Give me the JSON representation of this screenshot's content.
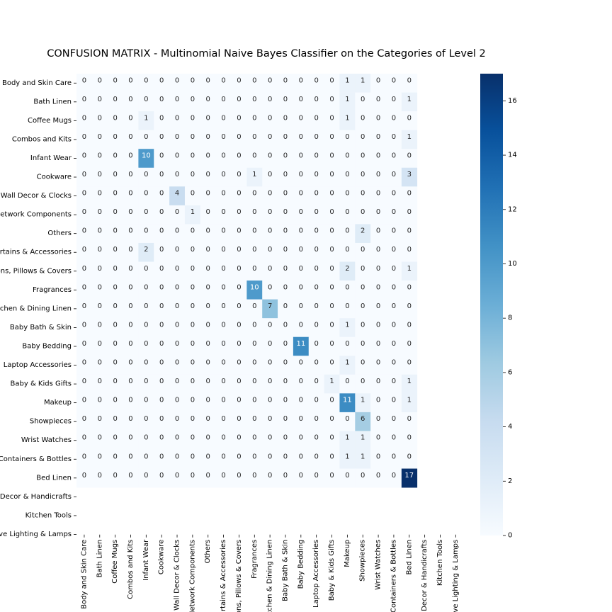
{
  "chart_data": {
    "type": "heatmap",
    "title": "CONFUSION MATRIX - Multinomial Naive Bayes Classifier on the Categories of Level 2",
    "row_labels": [
      "Body and Skin Care",
      "Bath Linen",
      "Coffee Mugs",
      "Combos and Kits",
      "Infant Wear",
      "Cookware",
      "Wall Decor & Clocks",
      "Network Components",
      "Others",
      "Curtains & Accessories",
      "Cushions, Pillows & Covers",
      "Fragrances",
      "Kitchen & Dining Linen",
      "Baby Bath & Skin",
      "Baby Bedding",
      "Laptop Accessories",
      "Baby & Kids Gifts",
      "Makeup",
      "Showpieces",
      "Wrist Watches",
      "Containers & Bottles",
      "Bed Linen",
      "Home Decor & Handicrafts",
      "Kitchen Tools",
      "Decorative Lighting & Lamps"
    ],
    "col_labels": [
      "Body and Skin Care",
      "Bath Linen",
      "Coffee Mugs",
      "Combos and Kits",
      "Infant Wear",
      "Cookware",
      "Wall Decor & Clocks",
      "Network Components",
      "Others",
      "Curtains & Accessories",
      "Cushions, Pillows & Covers",
      "Fragrances",
      "Kitchen & Dining Linen",
      "Baby Bath & Skin",
      "Baby Bedding",
      "Laptop Accessories",
      "Baby & Kids Gifts",
      "Makeup",
      "Showpieces",
      "Wrist Watches",
      "Containers & Bottles",
      "Bed Linen",
      "Home Decor & Handicrafts",
      "Kitchen Tools",
      "Decorative Lighting & Lamps"
    ],
    "n_filled_cols": 22,
    "matrix": [
      [
        0,
        0,
        0,
        0,
        0,
        0,
        0,
        0,
        0,
        0,
        0,
        0,
        0,
        0,
        0,
        0,
        0,
        1,
        1,
        0,
        0,
        0
      ],
      [
        0,
        0,
        0,
        0,
        0,
        0,
        0,
        0,
        0,
        0,
        0,
        0,
        0,
        0,
        0,
        0,
        0,
        1,
        0,
        0,
        0,
        1
      ],
      [
        0,
        0,
        0,
        0,
        1,
        0,
        0,
        0,
        0,
        0,
        0,
        0,
        0,
        0,
        0,
        0,
        0,
        1,
        0,
        0,
        0,
        0
      ],
      [
        0,
        0,
        0,
        0,
        0,
        0,
        0,
        0,
        0,
        0,
        0,
        0,
        0,
        0,
        0,
        0,
        0,
        0,
        0,
        0,
        0,
        1
      ],
      [
        0,
        0,
        0,
        0,
        10,
        0,
        0,
        0,
        0,
        0,
        0,
        0,
        0,
        0,
        0,
        0,
        0,
        0,
        0,
        0,
        0,
        0
      ],
      [
        0,
        0,
        0,
        0,
        0,
        0,
        0,
        0,
        0,
        0,
        0,
        1,
        0,
        0,
        0,
        0,
        0,
        0,
        0,
        0,
        0,
        3
      ],
      [
        0,
        0,
        0,
        0,
        0,
        0,
        4,
        0,
        0,
        0,
        0,
        0,
        0,
        0,
        0,
        0,
        0,
        0,
        0,
        0,
        0,
        0
      ],
      [
        0,
        0,
        0,
        0,
        0,
        0,
        0,
        1,
        0,
        0,
        0,
        0,
        0,
        0,
        0,
        0,
        0,
        0,
        0,
        0,
        0,
        0
      ],
      [
        0,
        0,
        0,
        0,
        0,
        0,
        0,
        0,
        0,
        0,
        0,
        0,
        0,
        0,
        0,
        0,
        0,
        0,
        2,
        0,
        0,
        0
      ],
      [
        0,
        0,
        0,
        0,
        2,
        0,
        0,
        0,
        0,
        0,
        0,
        0,
        0,
        0,
        0,
        0,
        0,
        0,
        0,
        0,
        0,
        0
      ],
      [
        0,
        0,
        0,
        0,
        0,
        0,
        0,
        0,
        0,
        0,
        0,
        0,
        0,
        0,
        0,
        0,
        0,
        2,
        0,
        0,
        0,
        1
      ],
      [
        0,
        0,
        0,
        0,
        0,
        0,
        0,
        0,
        0,
        0,
        0,
        10,
        0,
        0,
        0,
        0,
        0,
        0,
        0,
        0,
        0,
        0
      ],
      [
        0,
        0,
        0,
        0,
        0,
        0,
        0,
        0,
        0,
        0,
        0,
        0,
        7,
        0,
        0,
        0,
        0,
        0,
        0,
        0,
        0,
        0
      ],
      [
        0,
        0,
        0,
        0,
        0,
        0,
        0,
        0,
        0,
        0,
        0,
        0,
        0,
        0,
        0,
        0,
        0,
        1,
        0,
        0,
        0,
        0
      ],
      [
        0,
        0,
        0,
        0,
        0,
        0,
        0,
        0,
        0,
        0,
        0,
        0,
        0,
        0,
        11,
        0,
        0,
        0,
        0,
        0,
        0,
        0
      ],
      [
        0,
        0,
        0,
        0,
        0,
        0,
        0,
        0,
        0,
        0,
        0,
        0,
        0,
        0,
        0,
        0,
        0,
        1,
        0,
        0,
        0,
        0
      ],
      [
        0,
        0,
        0,
        0,
        0,
        0,
        0,
        0,
        0,
        0,
        0,
        0,
        0,
        0,
        0,
        0,
        1,
        0,
        0,
        0,
        0,
        1
      ],
      [
        0,
        0,
        0,
        0,
        0,
        0,
        0,
        0,
        0,
        0,
        0,
        0,
        0,
        0,
        0,
        0,
        0,
        11,
        1,
        0,
        0,
        1
      ],
      [
        0,
        0,
        0,
        0,
        0,
        0,
        0,
        0,
        0,
        0,
        0,
        0,
        0,
        0,
        0,
        0,
        0,
        0,
        6,
        0,
        0,
        0
      ],
      [
        0,
        0,
        0,
        0,
        0,
        0,
        0,
        0,
        0,
        0,
        0,
        0,
        0,
        0,
        0,
        0,
        0,
        1,
        1,
        0,
        0,
        0
      ],
      [
        0,
        0,
        0,
        0,
        0,
        0,
        0,
        0,
        0,
        0,
        0,
        0,
        0,
        0,
        0,
        0,
        0,
        1,
        1,
        0,
        0,
        0
      ],
      [
        0,
        0,
        0,
        0,
        0,
        0,
        0,
        0,
        0,
        0,
        0,
        0,
        0,
        0,
        0,
        0,
        0,
        0,
        0,
        0,
        0,
        17
      ]
    ],
    "vmin": 0,
    "vmax": 17,
    "colormap": "Blues",
    "colorbar_ticks": [
      0,
      2,
      4,
      6,
      8,
      10,
      12,
      14,
      16
    ],
    "colors": {
      "low": "#f7fbff",
      "high": "#08306b"
    }
  }
}
